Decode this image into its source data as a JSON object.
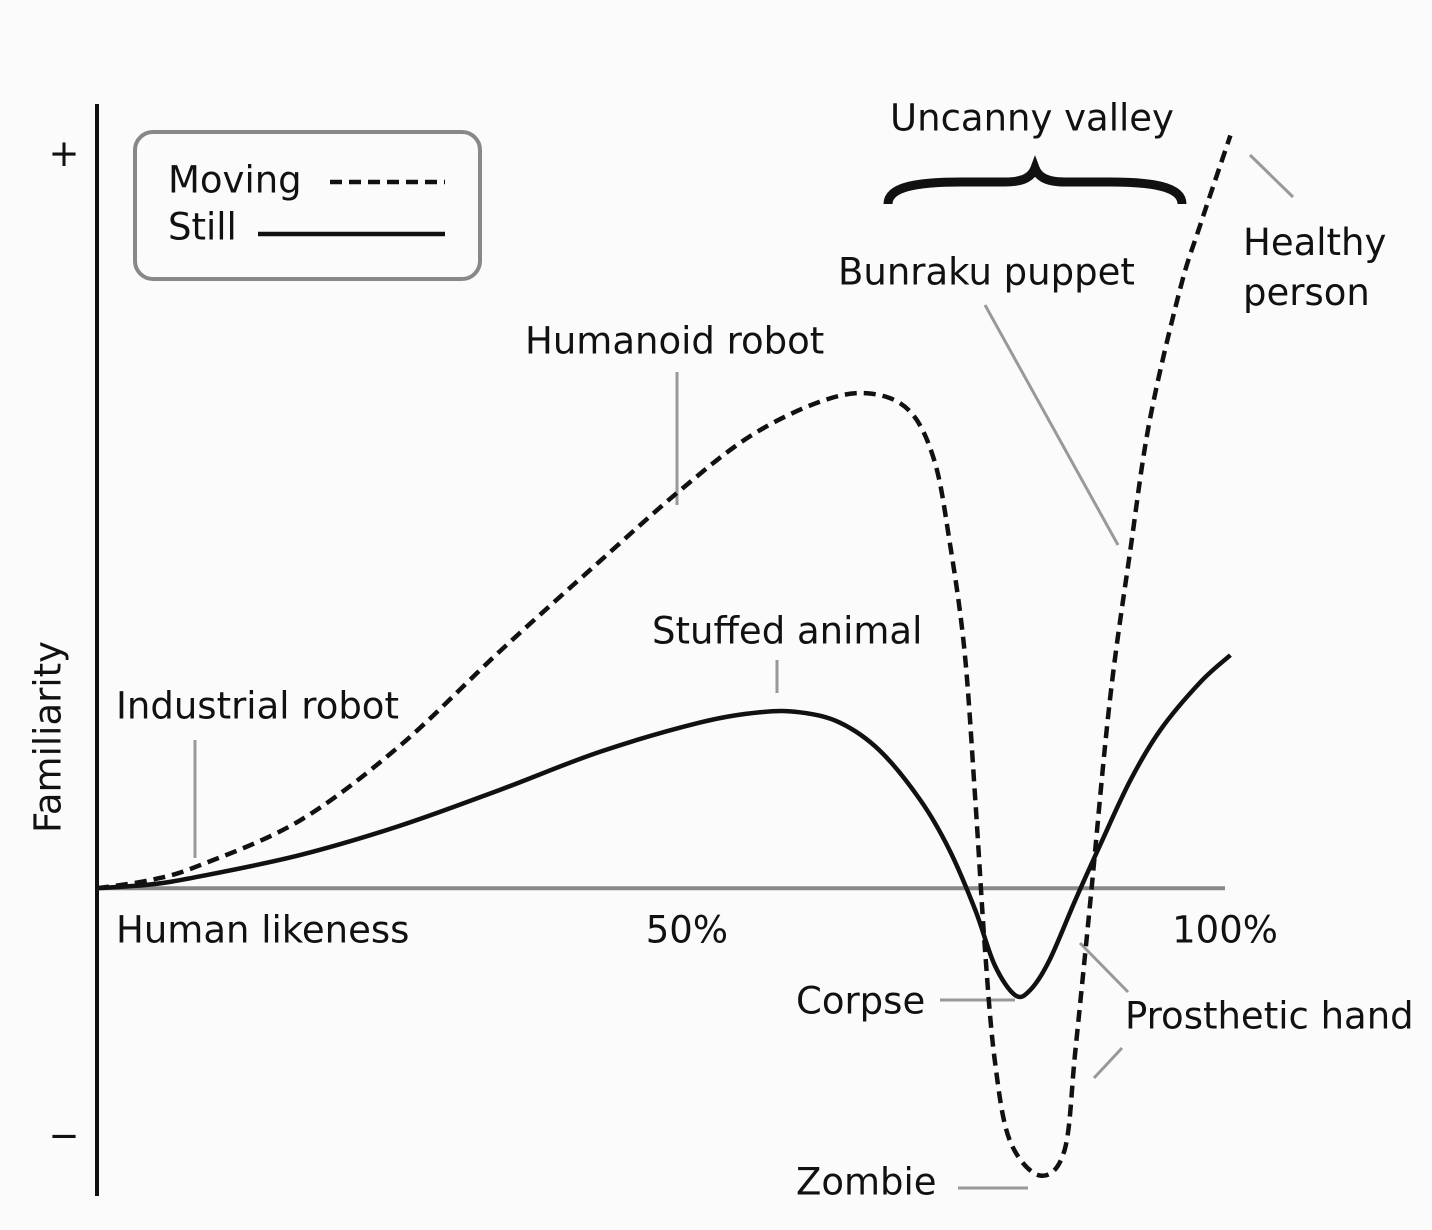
{
  "chart_data": {
    "type": "line",
    "x_label": "Human likeness",
    "y_label": "Familiarity",
    "xlim": [
      -5,
      100
    ],
    "ylim": [
      -42,
      107
    ],
    "xticks": [
      {
        "value": 50,
        "label": "50%"
      },
      {
        "value": 100,
        "label": "100%"
      }
    ],
    "yticks": [
      {
        "value": 100,
        "label": "+"
      },
      {
        "value": -34,
        "label": "−"
      }
    ],
    "series": [
      {
        "name": "Moving",
        "color": "#111111",
        "style": "dashed",
        "x": [
          -4.8,
          0.1,
          4.7,
          14.0,
          23.3,
          32.6,
          41.9,
          49.3,
          55.9,
          62.4,
          67.0,
          70.7,
          73.0,
          74.4,
          75.8,
          76.8,
          77.7,
          78.6,
          80.0,
          82.8,
          85.1,
          86.1,
          87.5,
          89.3,
          91.2,
          93.0,
          95.8,
          97.7,
          100.5
        ],
        "values": [
          0,
          1.1,
          3.1,
          9.2,
          19.4,
          32.3,
          44.6,
          54.2,
          61.7,
          66.4,
          67.5,
          65.1,
          58.3,
          47.4,
          32.3,
          12.0,
          -8.4,
          -23.4,
          -34.4,
          -39.2,
          -35.7,
          -22.1,
          -1.6,
          25.6,
          46.1,
          63.8,
          81.6,
          90.5,
          102.7
        ]
      },
      {
        "name": "Still",
        "color": "#111111",
        "style": "solid",
        "x": [
          -4.8,
          0.1,
          4.7,
          14.0,
          23.3,
          32.6,
          41.9,
          51.2,
          56.8,
          60.5,
          64.2,
          67.9,
          71.7,
          74.4,
          76.8,
          78.6,
          80.5,
          81.9,
          83.7,
          86.1,
          88.4,
          91.2,
          94.0,
          97.7,
          100.5
        ],
        "values": [
          0,
          0.5,
          1.6,
          4.5,
          8.5,
          13.4,
          18.6,
          22.6,
          24.0,
          24.0,
          22.6,
          18.8,
          12.0,
          5.2,
          -3.0,
          -10.5,
          -14.6,
          -13.9,
          -9.8,
          -1.6,
          5.9,
          14.7,
          21.6,
          28.1,
          31.8
        ]
      }
    ],
    "annotations": [
      "Uncanny valley",
      "Healthy person",
      "Bunraku puppet",
      "Humanoid robot",
      "Stuffed animal",
      "Industrial robot",
      "Corpse",
      "Prosthetic hand",
      "Zombie"
    ]
  }
}
